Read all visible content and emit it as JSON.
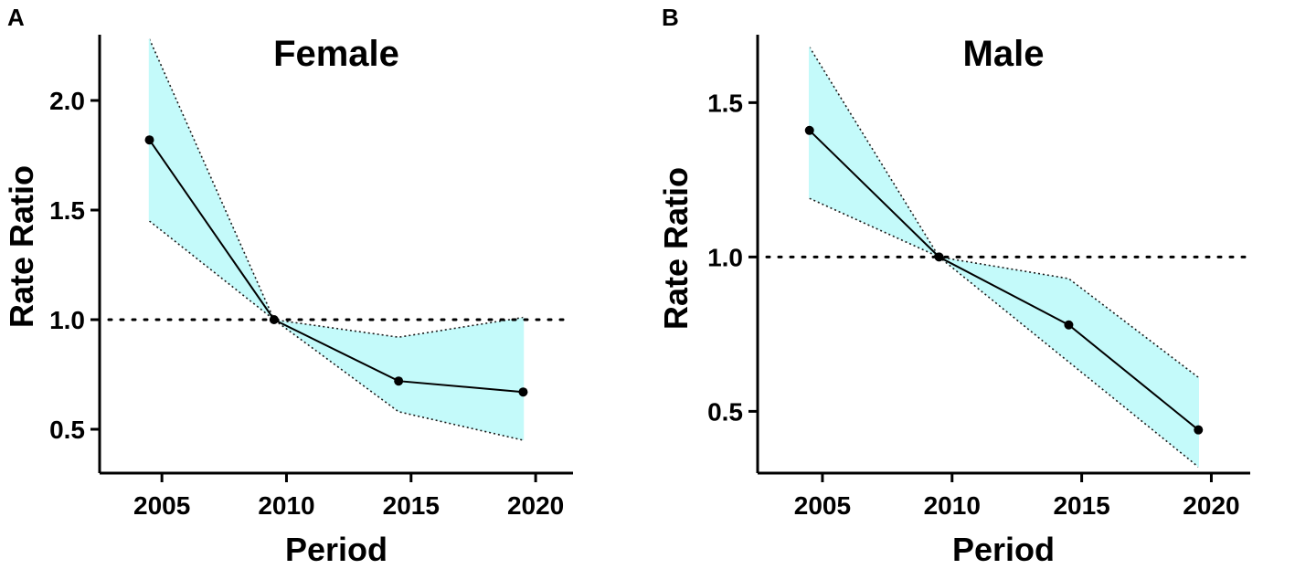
{
  "chart_data": [
    {
      "type": "line",
      "panel_label": "A",
      "title": "Female",
      "xlabel": "Period",
      "ylabel": "Rate Ratio",
      "xlim": [
        2002.5,
        2021.5
      ],
      "ylim": [
        0.3,
        2.3
      ],
      "xticks": [
        2005,
        2010,
        2015,
        2020
      ],
      "xtick_labels": [
        "2005",
        "2010",
        "2015",
        "2020"
      ],
      "yticks": [
        0.5,
        1.0,
        1.5,
        2.0
      ],
      "ytick_labels": [
        "0.5",
        "1.0",
        "1.5",
        "2.0"
      ],
      "reference_line": 1.0,
      "x": [
        2004.5,
        2009.5,
        2014.5,
        2019.5
      ],
      "series": [
        {
          "name": "Rate Ratio",
          "values": [
            1.82,
            1.0,
            0.72,
            0.67
          ]
        },
        {
          "name": "Upper CI",
          "values": [
            2.28,
            1.0,
            0.92,
            1.01
          ]
        },
        {
          "name": "Lower CI",
          "values": [
            1.45,
            1.0,
            0.58,
            0.45
          ]
        }
      ],
      "band_color": "#c4fafa",
      "line_color": "#000000"
    },
    {
      "type": "line",
      "panel_label": "B",
      "title": "Male",
      "xlabel": "Period",
      "ylabel": "Rate Ratio",
      "xlim": [
        2002.5,
        2021.5
      ],
      "ylim": [
        0.3,
        1.72
      ],
      "xticks": [
        2005,
        2010,
        2015,
        2020
      ],
      "xtick_labels": [
        "2005",
        "2010",
        "2015",
        "2020"
      ],
      "yticks": [
        0.5,
        1.0,
        1.5
      ],
      "ytick_labels": [
        "0.5",
        "1.0",
        "1.5"
      ],
      "reference_line": 1.0,
      "x": [
        2004.5,
        2009.5,
        2014.5,
        2019.5
      ],
      "series": [
        {
          "name": "Rate Ratio",
          "values": [
            1.41,
            1.0,
            0.78,
            0.44
          ]
        },
        {
          "name": "Upper CI",
          "values": [
            1.68,
            1.0,
            0.93,
            0.61
          ]
        },
        {
          "name": "Lower CI",
          "values": [
            1.19,
            1.0,
            0.66,
            0.32
          ]
        }
      ],
      "band_color": "#c4fafa",
      "line_color": "#000000"
    }
  ]
}
